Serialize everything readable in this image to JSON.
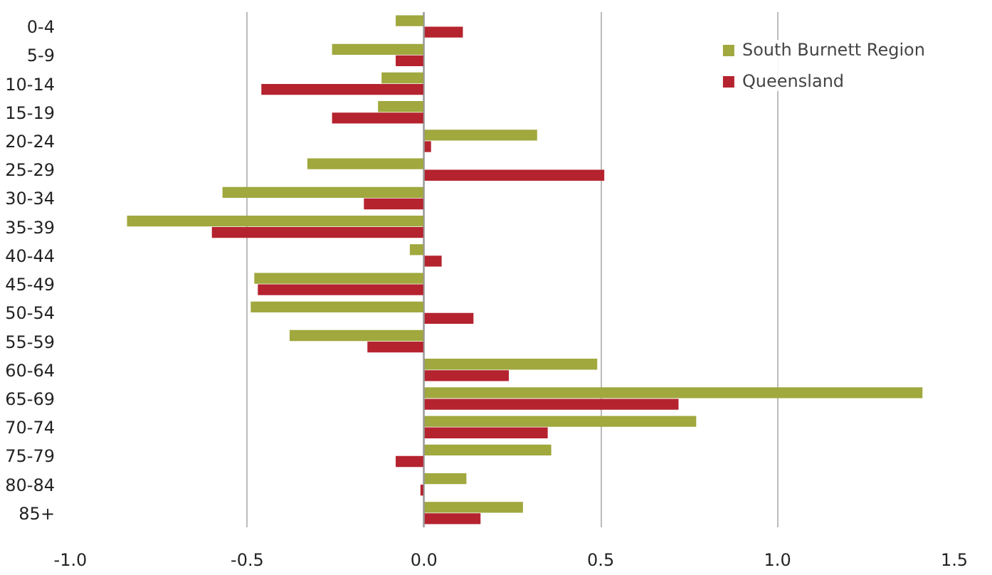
{
  "chart_data": {
    "type": "bar",
    "orientation": "horizontal",
    "categories": [
      "0-4",
      "5-9",
      "10-14",
      "15-19",
      "20-24",
      "25-29",
      "30-34",
      "35-39",
      "40-44",
      "45-49",
      "50-54",
      "55-59",
      "60-64",
      "65-69",
      "70-74",
      "75-79",
      "80-84",
      "85+"
    ],
    "series": [
      {
        "name": "South Burnett Region",
        "color": "#a0a83e",
        "values": [
          -0.08,
          -0.26,
          -0.12,
          -0.13,
          0.32,
          -0.33,
          -0.57,
          -0.84,
          -0.04,
          -0.48,
          -0.49,
          -0.38,
          0.49,
          1.41,
          0.77,
          0.36,
          0.12,
          0.28
        ]
      },
      {
        "name": "Queensland",
        "color": "#b5232f",
        "values": [
          0.11,
          -0.08,
          -0.46,
          -0.26,
          0.02,
          0.51,
          -0.17,
          -0.6,
          0.05,
          -0.47,
          0.14,
          -0.16,
          0.24,
          0.72,
          0.35,
          -0.08,
          -0.01,
          0.16
        ]
      }
    ],
    "xlim": [
      -1.0,
      1.5
    ],
    "xticks": [
      {
        "value": -1.0,
        "label": "-1.0"
      },
      {
        "value": -0.5,
        "label": "-0.5"
      },
      {
        "value": 0,
        "label": "0.0"
      },
      {
        "value": 0.5,
        "label": "0.5"
      },
      {
        "value": 1.0,
        "label": "1.0"
      },
      {
        "value": 1.5,
        "label": "1.5"
      }
    ],
    "grid": "x",
    "legend": "top right"
  }
}
